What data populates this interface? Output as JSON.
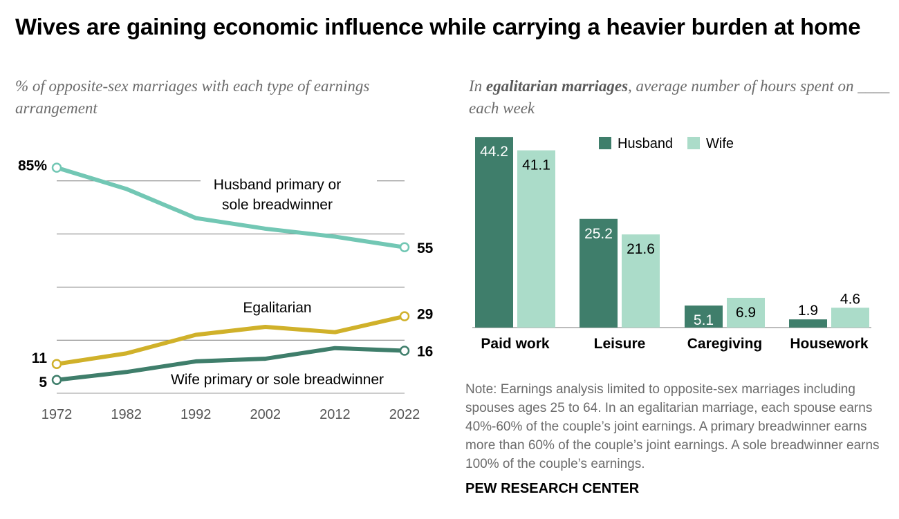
{
  "title": "Wives are gaining economic influence while carrying a heavier burden at home",
  "left_subtitle": "% of opposite-sex marriages with each type of earnings arrangement",
  "right_subtitle": {
    "prefix": "In",
    "bold": "egalitarian marriages",
    "suffix": ", average number of hours spent on ____ each week"
  },
  "note": "Note: Earnings analysis limited to opposite-sex marriages including spouses ages 25 to 64. In an egalitarian marriage, each spouse earns 40%-60% of the couple’s joint earnings. A primary breadwinner earns more than 60% of the couple’s joint earnings. A sole breadwinner earns 100% of the couple’s earnings.",
  "source": "PEW RESEARCH CENTER",
  "colors": {
    "husband_primary": "#72c7b4",
    "egalitarian": "#d0b12a",
    "wife_primary": "#3f7e6b",
    "bar_husband": "#3f7e6b",
    "bar_wife": "#abdcc9"
  },
  "chart_data": [
    {
      "type": "line",
      "x": [
        1972,
        1982,
        1992,
        2002,
        2012,
        2022
      ],
      "ylim": [
        0,
        90
      ],
      "grid": true,
      "series": [
        {
          "name": "Husband primary or sole breadwinner",
          "values": [
            85,
            77,
            66,
            62,
            59,
            55
          ],
          "start_label": "85%",
          "end_label": "55",
          "color_key": "husband_primary"
        },
        {
          "name": "Egalitarian",
          "values": [
            11,
            15,
            22,
            25,
            23,
            29
          ],
          "start_label": "11",
          "end_label": "29",
          "color_key": "egalitarian"
        },
        {
          "name": "Wife primary or sole breadwinner",
          "values": [
            5,
            8,
            12,
            13,
            17,
            16
          ],
          "start_label": "5",
          "end_label": "16",
          "color_key": "wife_primary"
        }
      ]
    },
    {
      "type": "bar",
      "categories": [
        "Paid work",
        "Leisure",
        "Caregiving",
        "Housework"
      ],
      "ylim": [
        0,
        44.2
      ],
      "legend": "top",
      "series": [
        {
          "name": "Husband",
          "values": [
            44.2,
            25.2,
            5.1,
            1.9
          ],
          "labels": [
            "44.2",
            "25.2",
            "5.1",
            "1.9"
          ],
          "color_key": "bar_husband"
        },
        {
          "name": "Wife",
          "values": [
            41.1,
            21.6,
            6.9,
            4.6
          ],
          "labels": [
            "41.1",
            "21.6",
            "6.9",
            "4.6"
          ],
          "color_key": "bar_wife"
        }
      ]
    }
  ]
}
